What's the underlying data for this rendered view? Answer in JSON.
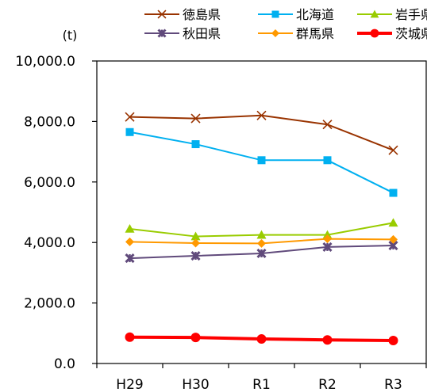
{
  "chart_data": {
    "type": "line",
    "unit_label": "(t)",
    "categories": [
      "H29",
      "H30",
      "R1",
      "R2",
      "R3"
    ],
    "ylim": [
      0,
      10000
    ],
    "yticks": [
      0,
      2000,
      4000,
      6000,
      8000,
      10000
    ],
    "ytick_labels": [
      "0.0",
      "2,000.0",
      "4,000.0",
      "6,000.0",
      "8,000.0",
      "10,000.0"
    ],
    "grid": false,
    "legend_position": "top-right",
    "series": [
      {
        "name": "徳島県",
        "color": "#993300",
        "marker": "x",
        "values": [
          8150,
          8100,
          8200,
          7900,
          7050
        ]
      },
      {
        "name": "北海道",
        "color": "#00b0f0",
        "marker": "square",
        "values": [
          7650,
          7250,
          6720,
          6720,
          5640
        ]
      },
      {
        "name": "岩手県",
        "color": "#99cc00",
        "marker": "triangle",
        "values": [
          4450,
          4200,
          4250,
          4250,
          4650
        ]
      },
      {
        "name": "秋田県",
        "color": "#604a7b",
        "marker": "star",
        "values": [
          3480,
          3560,
          3640,
          3850,
          3900
        ]
      },
      {
        "name": "群馬県",
        "color": "#ff9900",
        "marker": "diamond",
        "values": [
          4020,
          3980,
          3970,
          4120,
          4100
        ]
      },
      {
        "name": "茨城県",
        "color": "#ff0000",
        "marker": "circle",
        "values": [
          870,
          860,
          810,
          780,
          760
        ]
      }
    ]
  }
}
